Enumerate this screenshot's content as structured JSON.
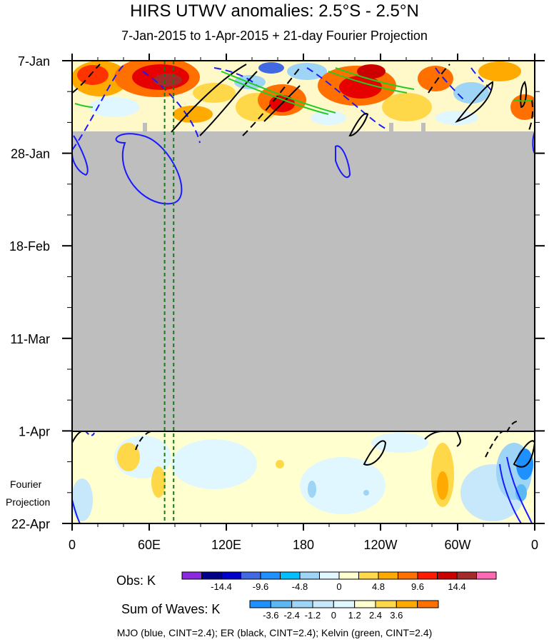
{
  "title": "HIRS UTWV anomalies: 2.5°S - 2.5°N",
  "subtitle": "7-Jan-2015 to 1-Apr-2015 + 21-day Fourier Projection",
  "chart_data": {
    "type": "heatmap",
    "x_axis": {
      "ticks": [
        "0",
        "60E",
        "120E",
        "180",
        "120W",
        "60W",
        "0"
      ],
      "tick_values_deg_east": [
        0,
        60,
        120,
        180,
        240,
        300,
        360
      ],
      "range": [
        0,
        360
      ]
    },
    "y_axis": {
      "ticks": [
        "7-Jan",
        "28-Jan",
        "18-Feb",
        "11-Mar",
        "1-Apr",
        "22-Apr"
      ],
      "direction": "time increases downward",
      "projection_label": "Fourier Projection"
    },
    "observed_period": {
      "start": "7-Jan",
      "end": "1-Apr",
      "data_available_until_about": "21-Jan",
      "missing_data_color": "#bebebe"
    },
    "projection_period": {
      "start": "1-Apr",
      "end": "22-Apr"
    },
    "vertical_markers": [
      {
        "x_deg_east": 72,
        "color": "#1a7a1a",
        "style": "dashed"
      },
      {
        "x_deg_east": 79,
        "color": "#1a7a1a",
        "style": "dashed"
      }
    ],
    "obs_colorbar": {
      "label": "Obs: K",
      "tick_labels": [
        "-14.4",
        "-9.6",
        "-4.8",
        "0",
        "4.8",
        "9.6",
        "14.4"
      ],
      "colors": [
        "#8a2be2",
        "#00008b",
        "#0000cd",
        "#4169e1",
        "#1e90ff",
        "#00bfff",
        "#9ed4f5",
        "#e0f7ff",
        "#ffffd0",
        "#ffd84a",
        "#ffaa00",
        "#ff7000",
        "#ff1a00",
        "#cc0000",
        "#a52a2a",
        "#ff69b4"
      ]
    },
    "waves_colorbar": {
      "label": "Sum of Waves: K",
      "tick_labels": [
        "-3.6",
        "-2.4",
        "-1.2",
        "0",
        "1.2",
        "2.4",
        "3.6"
      ],
      "colors": [
        "#1e90ff",
        "#5cb8f2",
        "#9ed4f5",
        "#c6e8fa",
        "#e0f7ff",
        "#ffffd0",
        "#ffd84a",
        "#ffaa00",
        "#ff7000"
      ]
    },
    "contours": [
      {
        "name": "MJO",
        "color": "#0000ff",
        "cint": 2.4
      },
      {
        "name": "ER",
        "color": "#000000",
        "cint": 2.4
      },
      {
        "name": "Kelvin",
        "color": "#22cc22",
        "cint": 2.4
      }
    ],
    "grid": false
  },
  "footer": "MJO (blue, CINT=2.4); ER (black, CINT=2.4); Kelvin (green, CINT=2.4)"
}
